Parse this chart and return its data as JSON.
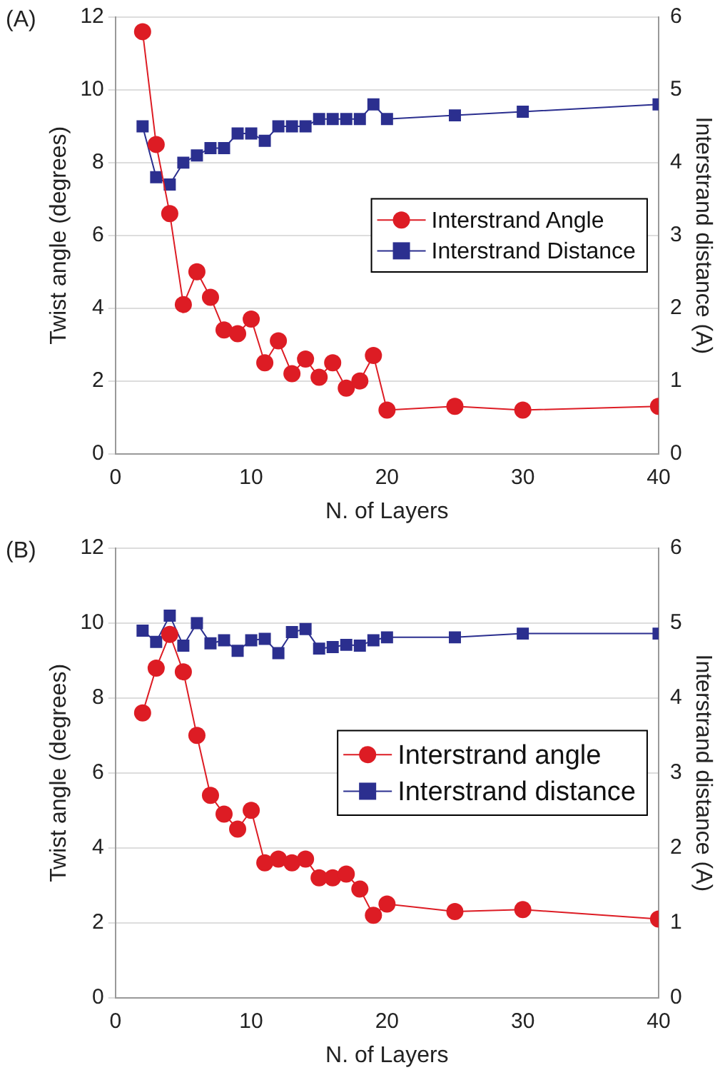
{
  "chart_data": [
    {
      "type": "line",
      "annotations": [
        "(A)"
      ],
      "xlabel": "N. of Layers",
      "ylabel": "Twist angle (degrees)",
      "y2label": "Interstrand distance (A)",
      "x": [
        2,
        3,
        4,
        5,
        6,
        7,
        8,
        9,
        10,
        11,
        12,
        13,
        14,
        15,
        16,
        17,
        18,
        19,
        20,
        25,
        30,
        40
      ],
      "xlim": [
        0,
        40
      ],
      "xticks": [
        0,
        10,
        20,
        30,
        40
      ],
      "ylim": [
        0,
        12
      ],
      "yticks": [
        0,
        2,
        4,
        6,
        8,
        10,
        12
      ],
      "y2lim": [
        0,
        6
      ],
      "y2ticks": [
        0,
        1,
        2,
        3,
        4,
        5,
        6
      ],
      "grid": "y",
      "legend": "right",
      "series": [
        {
          "name": "Interstrand Angle",
          "color": "#dd1c24",
          "marker": "circle",
          "values": [
            11.6,
            8.5,
            6.6,
            4.1,
            5.0,
            4.3,
            3.4,
            3.3,
            3.7,
            2.5,
            3.1,
            2.2,
            2.6,
            2.1,
            2.5,
            1.8,
            2.0,
            2.7,
            1.2,
            1.3,
            1.2,
            1.3
          ]
        },
        {
          "name": "Interstrand Distance",
          "color": "#2b2f8f",
          "marker": "square",
          "axis": "y2",
          "values": [
            4.5,
            3.8,
            3.7,
            4.0,
            4.1,
            4.2,
            4.2,
            4.4,
            4.4,
            4.3,
            4.5,
            4.5,
            4.5,
            4.6,
            4.6,
            4.6,
            4.6,
            4.8,
            4.6,
            4.65,
            4.7,
            4.8
          ]
        }
      ]
    },
    {
      "type": "line",
      "annotations": [
        "(B)"
      ],
      "xlabel": "N. of Layers",
      "ylabel": "Twist angle (degrees)",
      "y2label": "Interstrand distance (A)",
      "x": [
        2,
        3,
        4,
        5,
        6,
        7,
        8,
        9,
        10,
        11,
        12,
        13,
        14,
        15,
        16,
        17,
        18,
        19,
        20,
        25,
        30,
        40
      ],
      "xlim": [
        0,
        40
      ],
      "xticks": [
        0,
        10,
        20,
        30,
        40
      ],
      "ylim": [
        0,
        12
      ],
      "yticks": [
        0,
        2,
        4,
        6,
        8,
        10,
        12
      ],
      "y2lim": [
        0,
        6
      ],
      "y2ticks": [
        0,
        1,
        2,
        3,
        4,
        5,
        6
      ],
      "grid": "y",
      "legend": "right",
      "series": [
        {
          "name": "Interstrand angle",
          "color": "#dd1c24",
          "marker": "circle",
          "values": [
            7.6,
            8.8,
            9.7,
            8.7,
            7.0,
            5.4,
            4.9,
            4.5,
            5.0,
            3.6,
            3.7,
            3.6,
            3.7,
            3.2,
            3.2,
            3.3,
            2.9,
            2.2,
            2.5,
            2.3,
            2.35,
            2.1
          ]
        },
        {
          "name": "Interstrand distance",
          "color": "#2b2f8f",
          "marker": "square",
          "axis": "y2",
          "values": [
            4.9,
            4.75,
            5.1,
            4.7,
            5.0,
            4.73,
            4.77,
            4.63,
            4.77,
            4.79,
            4.6,
            4.88,
            4.92,
            4.66,
            4.68,
            4.71,
            4.7,
            4.77,
            4.81,
            4.81,
            4.86,
            4.86
          ]
        }
      ]
    }
  ]
}
